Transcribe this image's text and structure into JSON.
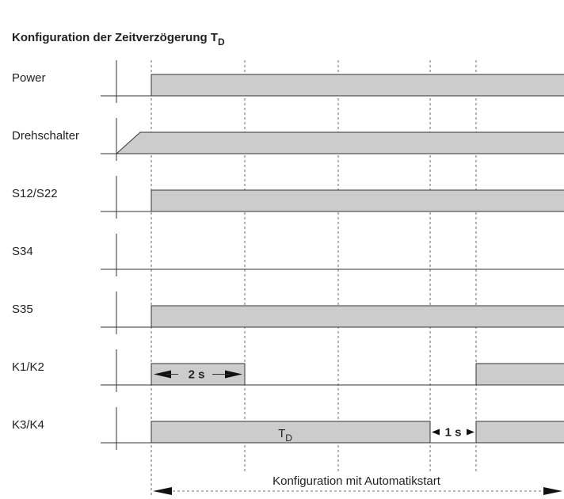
{
  "title": {
    "text": "Konfiguration der Zeitverzögerung T",
    "subscript": "D"
  },
  "signals": [
    "Power",
    "Drehschalter",
    "S12/S22",
    "S34",
    "S35",
    "K1/K2",
    "K3/K4"
  ],
  "annotations": {
    "k1_duration": "2 s",
    "td": {
      "text": "T",
      "subscript": "D"
    },
    "k3_gap": "1 s",
    "range": "Konfiguration mit Automatikstart"
  }
}
